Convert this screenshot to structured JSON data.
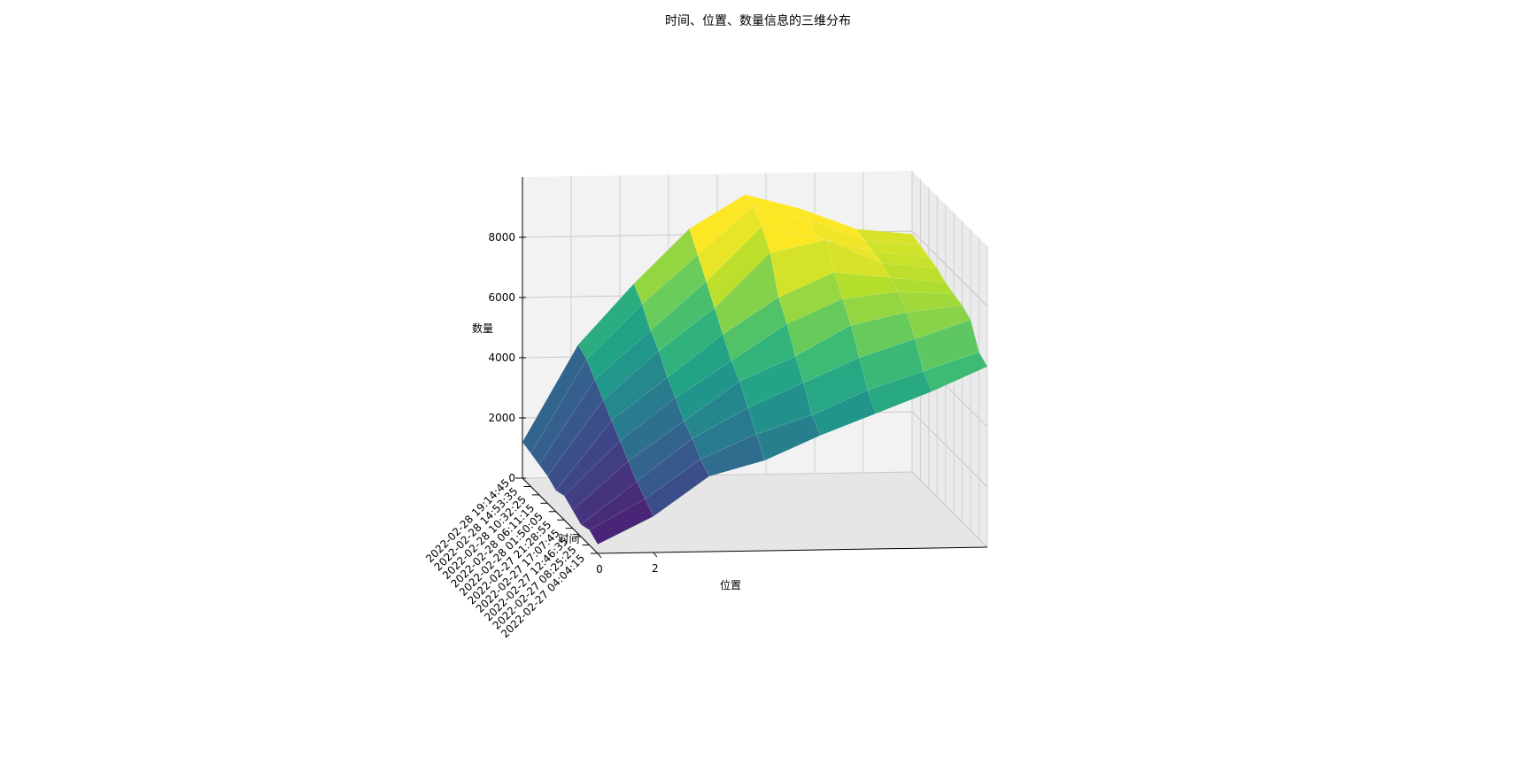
{
  "chart_data": {
    "type": "surface3d",
    "title": "时间、位置、数量信息的三维分布",
    "xlabel": "位置",
    "ylabel": "时间",
    "zlabel": "数量",
    "x": [
      0,
      2,
      4,
      6,
      8,
      10,
      12,
      14
    ],
    "xlim": [
      0,
      14
    ],
    "xticks": [
      0,
      2
    ],
    "categories": [
      "2022-02-27 04:04:15",
      "2022-02-27 08:25:25",
      "2022-02-27 12:46:35",
      "2022-02-27 17:07:45",
      "2022-02-27 21:28:55",
      "2022-02-28 01:50:05",
      "2022-02-28 06:11:15",
      "2022-02-28 10:32:25",
      "2022-02-28 14:53:35",
      "2022-02-28 19:14:45"
    ],
    "zlim": [
      0,
      10000
    ],
    "zticks": [
      0,
      2000,
      4000,
      6000,
      8000
    ],
    "colormap": "viridis",
    "grid": true,
    "values": [
      [
        300,
        1200,
        2500,
        3000,
        3800,
        4500,
        5200,
        6000
      ],
      [
        500,
        1500,
        2800,
        3600,
        4200,
        5000,
        5600,
        6200
      ],
      [
        400,
        1800,
        3200,
        4200,
        5000,
        5800,
        6400,
        7000
      ],
      [
        600,
        2200,
        3500,
        4800,
        5600,
        6600,
        7000,
        7200
      ],
      [
        800,
        2600,
        4000,
        5200,
        6400,
        7200,
        7400,
        7300
      ],
      [
        700,
        3000,
        4400,
        5800,
        7000,
        7800,
        7600,
        7400
      ],
      [
        900,
        3400,
        5000,
        6400,
        8200,
        8600,
        7800,
        7600
      ],
      [
        1000,
        3800,
        5400,
        7000,
        8800,
        8400,
        7900,
        7700
      ],
      [
        1100,
        4200,
        6000,
        7600,
        9200,
        8700,
        8000,
        7800
      ],
      [
        1200,
        4400,
        6400,
        8200,
        9300,
        8800,
        8100,
        7900
      ]
    ]
  }
}
